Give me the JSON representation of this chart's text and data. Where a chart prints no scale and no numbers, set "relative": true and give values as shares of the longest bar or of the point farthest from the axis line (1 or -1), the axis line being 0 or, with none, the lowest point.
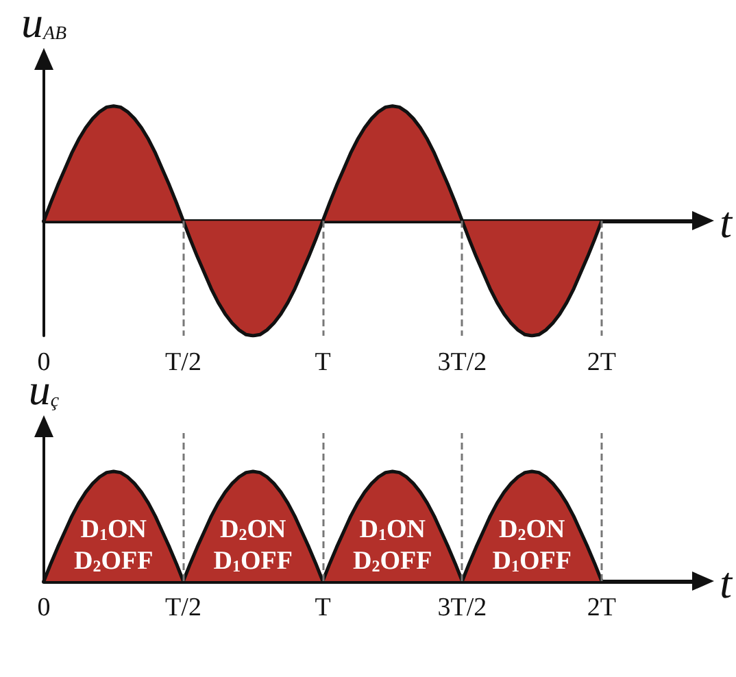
{
  "chart_data": [
    {
      "type": "area",
      "ylabel": "u$_{AB}$",
      "xlabel": "t",
      "relative": true,
      "color": "#b3302a",
      "marker": "none",
      "categories": [
        "0",
        null,
        null,
        null,
        null,
        null,
        null,
        null,
        null,
        null,
        null,
        null,
        null,
        null,
        null,
        null,
        null,
        null,
        null,
        null,
        "T/2",
        null,
        null,
        null,
        null,
        null,
        null,
        null,
        null,
        null,
        null,
        null,
        null,
        null,
        null,
        null,
        null,
        null,
        null,
        null,
        "T",
        null,
        null,
        null,
        null,
        null,
        null,
        null,
        null,
        null,
        null,
        null,
        null,
        null,
        null,
        null,
        null,
        null,
        null,
        null,
        "3T/2",
        null,
        null,
        null,
        null,
        null,
        null,
        null,
        null,
        null,
        null,
        null,
        null,
        null,
        null,
        null,
        null,
        null,
        null,
        null,
        "2T"
      ],
      "values": [
        0,
        0.16,
        0.31,
        0.45,
        0.59,
        0.71,
        0.81,
        0.89,
        0.95,
        0.99,
        1,
        0.99,
        0.95,
        0.89,
        0.81,
        0.71,
        0.59,
        0.45,
        0.31,
        0.16,
        0,
        -0.16,
        -0.31,
        -0.45,
        -0.59,
        -0.71,
        -0.81,
        -0.89,
        -0.95,
        -0.99,
        -1,
        -0.99,
        -0.95,
        -0.89,
        -0.81,
        -0.71,
        -0.59,
        -0.45,
        -0.31,
        -0.16,
        0,
        0.16,
        0.31,
        0.45,
        0.59,
        0.71,
        0.81,
        0.89,
        0.95,
        0.99,
        1,
        0.99,
        0.95,
        0.89,
        0.81,
        0.71,
        0.59,
        0.45,
        0.31,
        0.16,
        0,
        -0.16,
        -0.31,
        -0.45,
        -0.59,
        -0.71,
        -0.81,
        -0.89,
        -0.95,
        -0.99,
        -1,
        -0.99,
        -0.95,
        -0.89,
        -0.81,
        -0.71,
        -0.59,
        -0.45,
        -0.31,
        -0.16,
        0
      ],
      "ref_lines": [
        {
          "axis": "x",
          "value": "T/2",
          "color": "#777777",
          "line_style": "dashed"
        },
        {
          "axis": "x",
          "value": "T",
          "color": "#777777",
          "line_style": "dashed"
        },
        {
          "axis": "x",
          "value": "3T/2",
          "color": "#777777",
          "line_style": "dashed"
        },
        {
          "axis": "x",
          "value": "2T",
          "color": "#777777",
          "line_style": "dashed"
        }
      ]
    },
    {
      "type": "area",
      "ylabel": "u$_{ç}$",
      "xlabel": "t",
      "relative": true,
      "color": "#b3302a",
      "marker": "none",
      "categories": [
        "0",
        null,
        null,
        null,
        null,
        null,
        null,
        null,
        null,
        null,
        null,
        null,
        null,
        null,
        null,
        null,
        null,
        null,
        null,
        null,
        "T/2",
        null,
        null,
        null,
        null,
        null,
        null,
        null,
        null,
        null,
        null,
        null,
        null,
        null,
        null,
        null,
        null,
        null,
        null,
        null,
        "T",
        null,
        null,
        null,
        null,
        null,
        null,
        null,
        null,
        null,
        null,
        null,
        null,
        null,
        null,
        null,
        null,
        null,
        null,
        null,
        "3T/2",
        null,
        null,
        null,
        null,
        null,
        null,
        null,
        null,
        null,
        null,
        null,
        null,
        null,
        null,
        null,
        null,
        null,
        null,
        null,
        "2T"
      ],
      "values": [
        0,
        0.16,
        0.31,
        0.45,
        0.59,
        0.71,
        0.81,
        0.89,
        0.95,
        0.99,
        1,
        0.99,
        0.95,
        0.89,
        0.81,
        0.71,
        0.59,
        0.45,
        0.31,
        0.16,
        0,
        0.16,
        0.31,
        0.45,
        0.59,
        0.71,
        0.81,
        0.89,
        0.95,
        0.99,
        1,
        0.99,
        0.95,
        0.89,
        0.81,
        0.71,
        0.59,
        0.45,
        0.31,
        0.16,
        0,
        0.16,
        0.31,
        0.45,
        0.59,
        0.71,
        0.81,
        0.89,
        0.95,
        0.99,
        1,
        0.99,
        0.95,
        0.89,
        0.81,
        0.71,
        0.59,
        0.45,
        0.31,
        0.16,
        0,
        0.16,
        0.31,
        0.45,
        0.59,
        0.71,
        0.81,
        0.89,
        0.95,
        0.99,
        1,
        0.99,
        0.95,
        0.89,
        0.81,
        0.71,
        0.59,
        0.45,
        0.31,
        0.16,
        0
      ],
      "ref_lines": [
        {
          "axis": "x",
          "value": "T/2",
          "color": "#777777",
          "line_style": "dashed"
        },
        {
          "axis": "x",
          "value": "T",
          "color": "#777777",
          "line_style": "dashed"
        },
        {
          "axis": "x",
          "value": "3T/2",
          "color": "#777777",
          "line_style": "dashed"
        },
        {
          "axis": "x",
          "value": "2T",
          "color": "#777777",
          "line_style": "dashed"
        }
      ],
      "annotations": [
        "D$_{1}$ON\nD$_{2}$OFF",
        "D$_{2}$ON\nD$_{1}$OFF",
        "D$_{1}$ON\nD$_{2}$OFF",
        "D$_{2}$ON\nD$_{1}$OFF"
      ]
    }
  ]
}
